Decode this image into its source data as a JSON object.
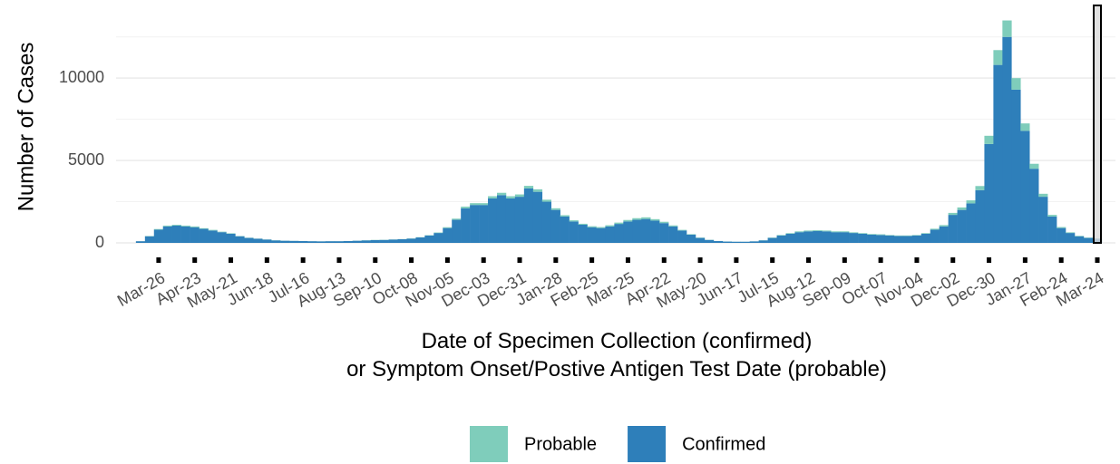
{
  "chart_data": {
    "type": "bar",
    "stacked": true,
    "x_label": "Date of Specimen Collection (confirmed)\nor Symptom Onset/Postive Antigen Test Date (probable)",
    "y_label": "Number of Cases",
    "categories": [
      null,
      null,
      "Mar-26",
      null,
      null,
      null,
      "Apr-23",
      null,
      null,
      null,
      "May-21",
      null,
      null,
      null,
      "Jun-18",
      null,
      null,
      null,
      "Jul-16",
      null,
      null,
      null,
      "Aug-13",
      null,
      null,
      null,
      "Sep-10",
      null,
      null,
      null,
      "Oct-08",
      null,
      null,
      null,
      "Nov-05",
      null,
      null,
      null,
      "Dec-03",
      null,
      null,
      null,
      "Dec-31",
      null,
      null,
      null,
      "Jan-28",
      null,
      null,
      null,
      "Feb-25",
      null,
      null,
      null,
      "Mar-25",
      null,
      null,
      null,
      "Apr-22",
      null,
      null,
      null,
      "May-20",
      null,
      null,
      null,
      "Jun-17",
      null,
      null,
      null,
      "Jul-15",
      null,
      null,
      null,
      "Aug-12",
      null,
      null,
      null,
      "Sep-09",
      null,
      null,
      null,
      "Oct-07",
      null,
      null,
      null,
      "Nov-04",
      null,
      null,
      null,
      "Dec-02",
      null,
      null,
      null,
      "Dec-30",
      null,
      null,
      null,
      "Jan-27",
      null,
      null,
      null,
      "Feb-24",
      null,
      null,
      null,
      "Mar-24"
    ],
    "series": [
      {
        "name": "Confirmed",
        "color": "#2e7fba",
        "values": [
          100,
          400,
          800,
          1000,
          1050,
          1000,
          950,
          850,
          750,
          650,
          550,
          400,
          300,
          250,
          200,
          150,
          130,
          120,
          110,
          100,
          90,
          100,
          100,
          110,
          130,
          150,
          170,
          180,
          200,
          220,
          260,
          330,
          450,
          600,
          900,
          1400,
          2100,
          2300,
          2300,
          2700,
          2900,
          2700,
          2800,
          3300,
          3100,
          2500,
          2000,
          1600,
          1300,
          1100,
          950,
          900,
          1000,
          1150,
          1300,
          1400,
          1450,
          1350,
          1200,
          1000,
          750,
          500,
          300,
          180,
          110,
          80,
          70,
          70,
          90,
          150,
          300,
          450,
          550,
          650,
          700,
          720,
          700,
          650,
          650,
          600,
          550,
          500,
          480,
          450,
          420,
          420,
          450,
          550,
          800,
          1000,
          1700,
          2000,
          2400,
          3200,
          6000,
          10800,
          12500,
          9300,
          6800,
          4500,
          2800,
          1600,
          900,
          600,
          400,
          300,
          250
        ]
      },
      {
        "name": "Probable",
        "color": "#7fcdbb",
        "values": [
          5,
          20,
          40,
          50,
          50,
          50,
          50,
          40,
          40,
          30,
          30,
          20,
          15,
          10,
          10,
          10,
          5,
          5,
          5,
          5,
          5,
          5,
          5,
          5,
          5,
          10,
          10,
          10,
          10,
          10,
          15,
          15,
          20,
          30,
          50,
          70,
          100,
          110,
          110,
          130,
          140,
          130,
          140,
          160,
          150,
          120,
          100,
          80,
          70,
          60,
          60,
          60,
          70,
          80,
          90,
          100,
          100,
          90,
          80,
          60,
          40,
          30,
          20,
          10,
          5,
          5,
          5,
          5,
          5,
          10,
          20,
          30,
          40,
          50,
          50,
          50,
          50,
          50,
          50,
          40,
          40,
          40,
          40,
          30,
          30,
          30,
          30,
          40,
          60,
          80,
          120,
          150,
          180,
          250,
          500,
          900,
          1000,
          700,
          450,
          300,
          180,
          100,
          60,
          40,
          30,
          20,
          20
        ]
      }
    ],
    "ylim": [
      0,
      14300
    ],
    "yticks": [
      0,
      5000,
      10000
    ],
    "minor_yticks": [
      2500,
      7500,
      12500
    ],
    "grid": true
  }
}
